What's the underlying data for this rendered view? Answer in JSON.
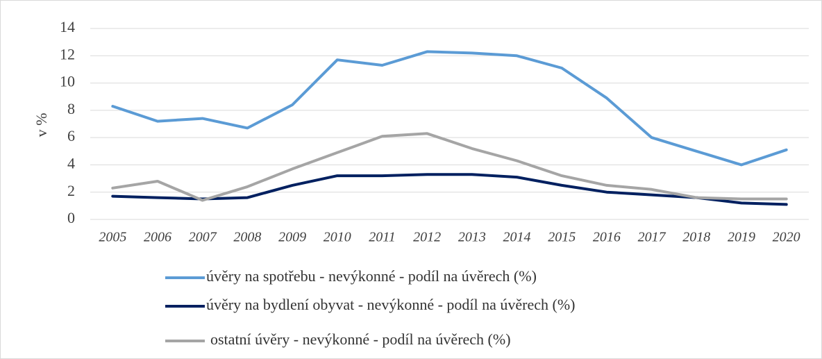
{
  "chart_data": {
    "type": "line",
    "y_label": "v %",
    "categories": [
      "2005",
      "2006",
      "2007",
      "2008",
      "2009",
      "2010",
      "2011",
      "2012",
      "2013",
      "2014",
      "2015",
      "2016",
      "2017",
      "2018",
      "2019",
      "2020"
    ],
    "series": [
      {
        "name": "úvěry na spotřebu - nevýkonné - podíl na úvěrech (%)",
        "color": "#5b9bd5",
        "values": [
          8.3,
          7.2,
          7.4,
          6.7,
          8.4,
          11.7,
          11.3,
          12.3,
          12.2,
          12.0,
          11.1,
          8.9,
          6.0,
          5.0,
          4.0,
          5.1
        ]
      },
      {
        "name": "úvěry na bydlení obyvat - nevýkonné - podíl na úvěrech (%)",
        "color": "#002060",
        "values": [
          1.7,
          1.6,
          1.5,
          1.6,
          2.5,
          3.2,
          3.2,
          3.3,
          3.3,
          3.1,
          2.5,
          2.0,
          1.8,
          1.6,
          1.2,
          1.1
        ]
      },
      {
        "name": "ostatní úvěry - nevýkonné - podíl na úvěrech (%)",
        "color": "#a5a5a5",
        "values": [
          2.3,
          2.8,
          1.4,
          2.4,
          3.7,
          4.9,
          6.1,
          6.3,
          5.2,
          4.3,
          3.2,
          2.5,
          2.2,
          1.6,
          1.5,
          1.5
        ]
      }
    ],
    "ylim": [
      0,
      14
    ],
    "yticks": [
      0,
      2,
      4,
      6,
      8,
      10,
      12,
      14
    ],
    "grid": true,
    "legend": "bottom"
  }
}
